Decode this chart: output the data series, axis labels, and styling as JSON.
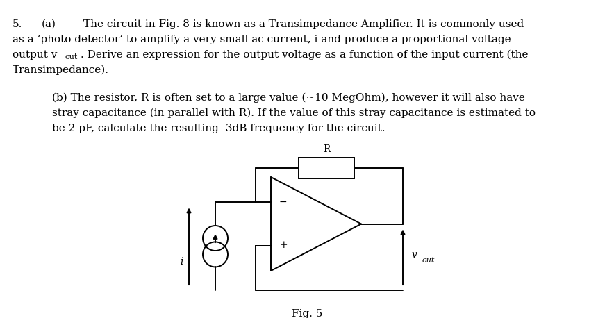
{
  "background_color": "#ffffff",
  "text_color": "#000000",
  "fig_width": 8.84,
  "fig_height": 4.58,
  "dpi": 100,
  "lw": 1.4,
  "text_a_line1_num": "5.",
  "text_a_line1_a": "(a)",
  "text_a_line1_rest": "The circuit in Fig. 8 is known as a Transimpedance Amplifier. It is commonly used",
  "text_a_line2": "as a ‘photo detector’ to amplify a very small ac current, i and produce a proportional voltage",
  "text_a_line3a": "output v",
  "text_a_line3_sub": "out",
  "text_a_line3b": ". Derive an expression for the output voltage as a function of the input current (the",
  "text_a_line4": "Transimpedance).",
  "text_b_line1": "(b) The resistor, R is often set to a large value (~10 MegOhm), however it will also have",
  "text_b_line2": "stray capacitance (in parallel with R). If the value of this stray capacitance is estimated to",
  "text_b_line3": "be 2 pF, calculate the resulting -3dB frequency for the circuit.",
  "fig_caption": "Fig. 5",
  "font_size_main": 11,
  "font_size_sub": 8,
  "font_size_caption": 11
}
